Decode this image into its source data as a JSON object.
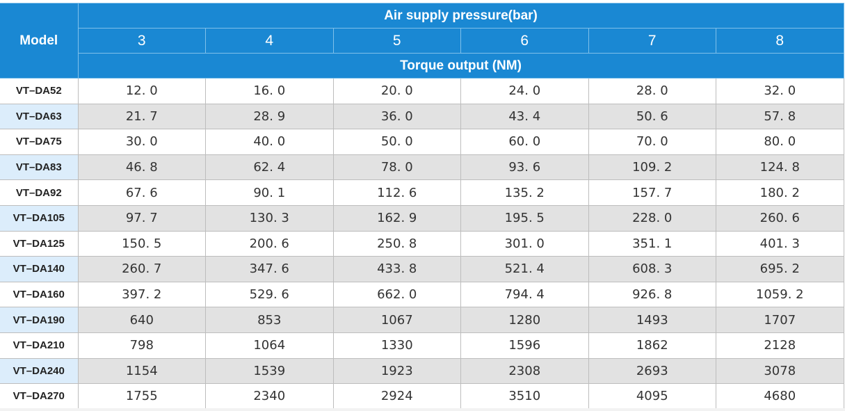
{
  "table": {
    "model_header": "Model",
    "pressure_header": "Air supply pressure(bar)",
    "pressures": [
      "3",
      "4",
      "5",
      "6",
      "7",
      "8"
    ],
    "torque_header": "Torque output (NM)",
    "rows": [
      {
        "model": "VT–DA52",
        "values": [
          "12. 0",
          "16. 0",
          "20. 0",
          "24. 0",
          "28. 0",
          "32. 0"
        ]
      },
      {
        "model": "VT–DA63",
        "values": [
          "21. 7",
          "28. 9",
          "36. 0",
          "43. 4",
          "50. 6",
          "57. 8"
        ]
      },
      {
        "model": "VT–DA75",
        "values": [
          "30. 0",
          "40. 0",
          "50. 0",
          "60. 0",
          "70. 0",
          "80. 0"
        ]
      },
      {
        "model": "VT–DA83",
        "values": [
          "46. 8",
          "62. 4",
          "78. 0",
          "93. 6",
          "109. 2",
          "124. 8"
        ]
      },
      {
        "model": "VT–DA92",
        "values": [
          "67. 6",
          "90. 1",
          "112. 6",
          "135. 2",
          "157. 7",
          "180. 2"
        ]
      },
      {
        "model": "VT–DA105",
        "values": [
          "97. 7",
          "130. 3",
          "162. 9",
          "195. 5",
          "228. 0",
          "260. 6"
        ]
      },
      {
        "model": "VT–DA125",
        "values": [
          "150. 5",
          "200. 6",
          "250. 8",
          "301. 0",
          "351. 1",
          "401. 3"
        ]
      },
      {
        "model": "VT–DA140",
        "values": [
          "260. 7",
          "347. 6",
          "433. 8",
          "521. 4",
          "608. 3",
          "695. 2"
        ]
      },
      {
        "model": "VT–DA160",
        "values": [
          "397. 2",
          "529. 6",
          "662. 0",
          "794. 4",
          "926. 8",
          "1059. 2"
        ]
      },
      {
        "model": "VT–DA190",
        "values": [
          "640",
          "853",
          "1067",
          "1280",
          "1493",
          "1707"
        ]
      },
      {
        "model": "VT–DA210",
        "values": [
          "798",
          "1064",
          "1330",
          "1596",
          "1862",
          "2128"
        ]
      },
      {
        "model": "VT–DA240",
        "values": [
          "1154",
          "1539",
          "1923",
          "2308",
          "2693",
          "3078"
        ]
      },
      {
        "model": "VT–DA270",
        "values": [
          "1755",
          "2340",
          "2924",
          "3510",
          "4095",
          "4680"
        ]
      }
    ]
  },
  "colors": {
    "header_blue": "#1a88d3",
    "stripe_gray": "#e2e2e2",
    "model_stripe_blue": "#dcedfb"
  }
}
